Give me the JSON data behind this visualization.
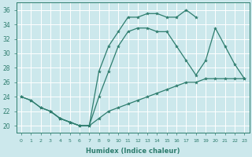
{
  "background_color": "#cce8ec",
  "grid_color": "#ffffff",
  "line_color": "#2e7d6e",
  "xlabel": "Humidex (Indice chaleur)",
  "xlim": [
    -0.5,
    23.5
  ],
  "ylim": [
    19,
    37
  ],
  "yticks": [
    20,
    22,
    24,
    26,
    28,
    30,
    32,
    34,
    36
  ],
  "xticks": [
    0,
    1,
    2,
    3,
    4,
    5,
    6,
    7,
    8,
    9,
    10,
    11,
    12,
    13,
    14,
    15,
    16,
    17,
    18,
    19,
    20,
    21,
    22,
    23
  ],
  "line1": {
    "x": [
      0,
      1,
      2,
      3,
      4,
      5,
      6,
      7,
      8,
      9,
      10,
      11,
      12,
      13,
      14,
      15,
      16,
      17,
      18
    ],
    "y": [
      24,
      23.5,
      22.5,
      22,
      21,
      20.5,
      20,
      20,
      27.5,
      31,
      33,
      35,
      35,
      35.5,
      35.5,
      35,
      35,
      36,
      35
    ]
  },
  "line2": {
    "x": [
      0,
      1,
      2,
      3,
      4,
      5,
      6,
      7,
      8,
      9,
      10,
      11,
      12,
      13,
      14,
      15,
      16,
      17,
      18,
      19,
      20,
      21,
      22,
      23
    ],
    "y": [
      24,
      23.5,
      22.5,
      22,
      21,
      20.5,
      20,
      20,
      21,
      22,
      22.5,
      23,
      23.5,
      24,
      24.5,
      25,
      25.5,
      26,
      26,
      26.5,
      26.5,
      26.5,
      26.5,
      26.5
    ]
  },
  "line3": {
    "x": [
      3,
      4,
      5,
      6,
      7,
      8,
      9,
      10,
      11,
      12,
      13,
      14,
      15,
      16,
      17,
      18,
      19,
      20,
      21,
      22,
      23
    ],
    "y": [
      22,
      21,
      20.5,
      20,
      20,
      24,
      27.5,
      31,
      33,
      33.5,
      33.5,
      33,
      33,
      31,
      29,
      27,
      29,
      33.5,
      31,
      28.5,
      26.5
    ]
  }
}
